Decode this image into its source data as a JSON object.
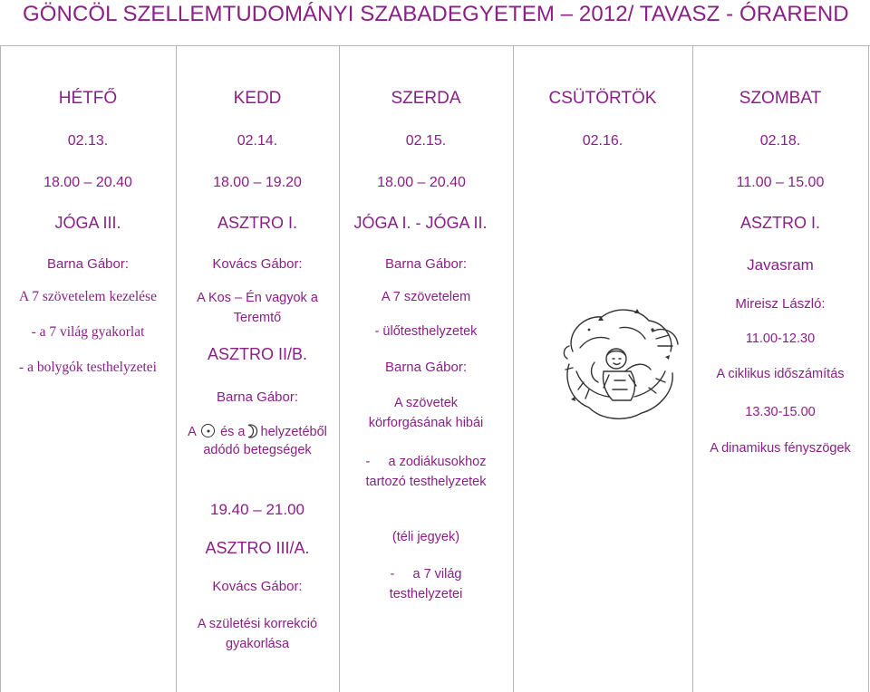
{
  "title": "GÖNCÖL SZELLEMTUDOMÁNYI SZABADEGYETEM – 2012/ TAVASZ - ÓRAREND",
  "days": {
    "mon": {
      "name": "HÉTFŐ",
      "date": "02.13."
    },
    "tue": {
      "name": "KEDD",
      "date": "02.14."
    },
    "wed": {
      "name": "SZERDA",
      "date": "02.15."
    },
    "thu": {
      "name": "CSÜTÖRTÖK",
      "date": "02.16."
    },
    "sat": {
      "name": "SZOMBAT",
      "date": "02.18."
    }
  },
  "mon": {
    "time": "18.00 – 20.40",
    "course": "JÓGA III.",
    "lecturer": "Barna Gábor:",
    "lines": [
      "A 7 szövetelem kezelése",
      "- a 7 világ gyakorlat",
      "- a bolygók testhelyzetei"
    ]
  },
  "tue": {
    "time": "18.00 – 19.20",
    "course": "ASZTRO I.",
    "lecturer": "Kovács Gábor:",
    "topic1": "A Kos – Én vagyok a Teremtő",
    "course2": "ASZTRO II/B.",
    "lecturer2": "Barna Gábor:",
    "topic2_a": "A",
    "topic2_b": "és a",
    "topic2_c": "helyzetéből",
    "topic2_d": "adódó betegségek",
    "time2": "19.40 – 21.00",
    "course3": "ASZTRO III/A.",
    "lecturer3": "Kovács Gábor:",
    "topic3": "A születési korrekció gyakorlása"
  },
  "wed": {
    "time": "18.00 – 20.40",
    "course": "JÓGA I. - JÓGA II.",
    "lecturer": "Barna Gábor:",
    "line1": "A 7 szövetelem",
    "line2": "- ülőtesthelyzetek",
    "lecturer2": "Barna Gábor:",
    "line3": "A szövetek körforgásának hibái",
    "line4": "-     a zodiákusokhoz tartozó testhelyzetek",
    "line5": "(téli jegyek)",
    "line6": "-     a 7 világ testhelyzetei"
  },
  "sat": {
    "time": "11.00 – 15.00",
    "course": "ASZTRO I.",
    "note": "Javasram",
    "lecturer": "Mireisz László:",
    "time2": "11.00-12.30",
    "topic1": "A ciklikus időszámítás",
    "time3": "13.30-15.00",
    "topic2": "A dinamikus fényszögek"
  },
  "icons": {
    "sun": "sun-astrology-icon",
    "moon": "moon-astrology-icon",
    "image": "dragon-illustration"
  },
  "colors": {
    "text": "#8a1f86",
    "grid": "#b5b5b5"
  }
}
